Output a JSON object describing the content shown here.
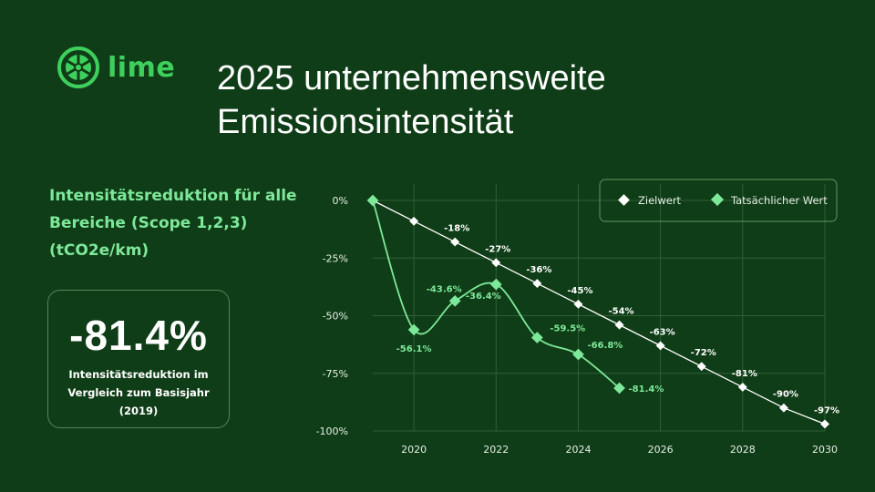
{
  "brand": {
    "name": "lime",
    "color": "#3ecf5c"
  },
  "title": "2025 unternehmensweite Emissionsintensität",
  "subtitle": "Intensitätsreduktion für alle Bereiche (Scope 1,2,3) (tCO2e/km)",
  "kpi": {
    "value": "-81.4%",
    "caption": "Intensitätsreduktion im Vergleich zum Basisjahr (2019)"
  },
  "colors": {
    "background": "#0f3d17",
    "target": "#ffffff",
    "actual": "#7ee89a",
    "grid": "#2f5f35"
  },
  "chart_data": {
    "type": "line",
    "xlim": [
      2019,
      2030
    ],
    "ylim": [
      -100,
      0
    ],
    "x_ticks": [
      2020,
      2022,
      2024,
      2026,
      2028,
      2030
    ],
    "y_ticks": [
      0,
      -25,
      -50,
      -75,
      -100
    ],
    "y_tick_labels": [
      "0%",
      "-25%",
      "-50%",
      "-75%",
      "-100%"
    ],
    "legend_position": "top-right",
    "series": [
      {
        "name": "Zielwert",
        "x": [
          2019,
          2020,
          2021,
          2022,
          2023,
          2024,
          2025,
          2026,
          2027,
          2028,
          2029,
          2030
        ],
        "values": [
          0,
          -9,
          -18,
          -27,
          -36,
          -45,
          -54,
          -63,
          -72,
          -81,
          -90,
          -97
        ],
        "labels": [
          "",
          "",
          "-18%",
          "-27%",
          "-36%",
          "-45%",
          "-54%",
          "-63%",
          "-72%",
          "-81%",
          "-90%",
          "-97%"
        ]
      },
      {
        "name": "Tatsächlicher Wert",
        "x": [
          2019,
          2020,
          2021,
          2022,
          2023,
          2024,
          2025
        ],
        "values": [
          0,
          -56.1,
          -43.6,
          -36.4,
          -59.5,
          -66.8,
          -81.4
        ],
        "labels": [
          "",
          "-56.1%",
          "-43.6%",
          "-36.4%",
          "-59.5%",
          "-66.8%",
          "-81.4%"
        ]
      }
    ]
  }
}
